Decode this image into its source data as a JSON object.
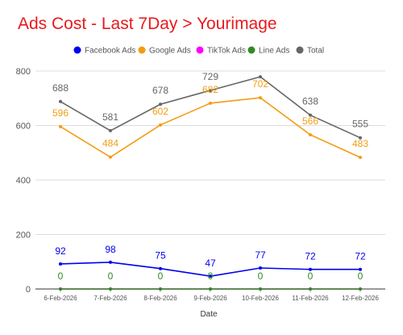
{
  "title": "Ads Cost - Last 7Day > Yourimage",
  "title_color": "#e8191e",
  "chart_data": {
    "type": "line",
    "title": "Ads Cost - Last 7Day > Yourimage",
    "xlabel": "Date",
    "ylabel": "",
    "categories": [
      "6-Feb-2026",
      "7-Feb-2026",
      "8-Feb-2026",
      "9-Feb-2026",
      "10-Feb-2026",
      "11-Feb-2026",
      "12-Feb-2026"
    ],
    "ylim": [
      0,
      800
    ],
    "yticks": [
      "0",
      "200",
      "400",
      "600",
      "800"
    ],
    "grid": true,
    "legend_position": "top",
    "series": [
      {
        "name": "Facebook Ads",
        "color": "#0000ee",
        "values": [
          92,
          98,
          75,
          47,
          77,
          72,
          72
        ]
      },
      {
        "name": "Google Ads",
        "color": "#f39c12",
        "values": [
          596,
          484,
          602,
          682,
          702,
          566,
          483
        ]
      },
      {
        "name": "TikTok Ads",
        "color": "#ff00ff",
        "values": [
          0,
          0,
          0,
          0,
          0,
          0,
          0
        ]
      },
      {
        "name": "Line Ads",
        "color": "#2e8b22",
        "values": [
          0,
          0,
          0,
          0,
          0,
          0,
          0
        ]
      },
      {
        "name": "Total",
        "color": "#666666",
        "values": [
          688,
          581,
          678,
          729,
          779,
          638,
          555
        ]
      }
    ],
    "data_labels": {
      "Total": [
        "688",
        "581",
        "678",
        "729",
        "",
        "638",
        "555"
      ],
      "Google Ads": [
        "596",
        "484",
        "602",
        "682",
        "702",
        "566",
        "483"
      ],
      "Facebook Ads": [
        "92",
        "98",
        "75",
        "47",
        "77",
        "72",
        "72"
      ],
      "Line Ads": [
        "0",
        "0",
        "0",
        "0",
        "0",
        "0",
        "0"
      ]
    }
  }
}
